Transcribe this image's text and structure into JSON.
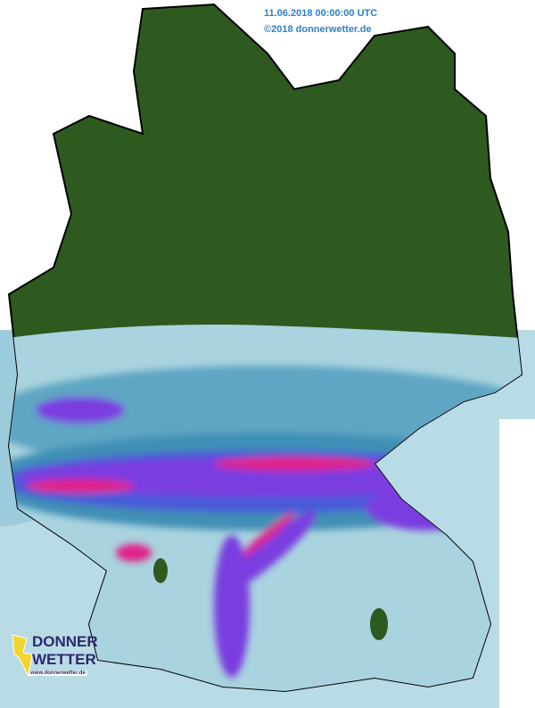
{
  "header": {
    "timestamp": "11.06.2018 00:00:00 UTC",
    "copyright": "©2018 donnerwetter.de"
  },
  "logo": {
    "line1": "DONNER",
    "line2": "WETTER",
    "url": "www.donnerwetter.de"
  },
  "colors": {
    "land_no_precip": "#2e5a1f",
    "radar_light": "#a9d3df",
    "radar_mid": "#3f8fb5",
    "radar_blue": "#4a5ad8",
    "radar_violet": "#7a3ce0",
    "radar_magenta": "#e0208a",
    "header_text": "#2f7fc4"
  }
}
